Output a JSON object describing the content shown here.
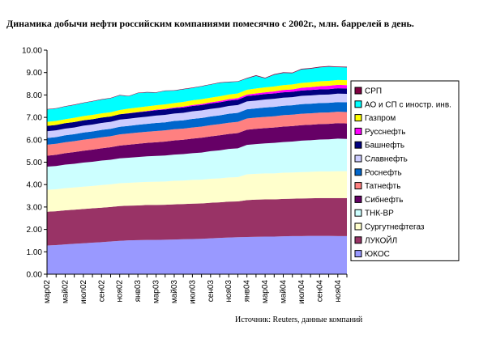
{
  "title": "Динамика добычи нефти российским компаниями помесячно с 2002г., млн. баррелей в день.",
  "source": "Источник: Reuters, данные компаний",
  "chart_data": {
    "type": "area",
    "stacked": true,
    "ylim": [
      0,
      10
    ],
    "yticks": [
      "0.00",
      "1.00",
      "2.00",
      "3.00",
      "4.00",
      "5.00",
      "6.00",
      "7.00",
      "8.00",
      "9.00",
      "10.00"
    ],
    "x_tick_labels": [
      "мар02",
      "май02",
      "июл02",
      "сен02",
      "ноя02",
      "янв03",
      "мар03",
      "май03",
      "июл03",
      "сен03",
      "ноя03",
      "янв04",
      "мар04",
      "май04",
      "июл04",
      "сен04",
      "ноя04"
    ],
    "x": [
      "мар02",
      "апр02",
      "май02",
      "июн02",
      "июл02",
      "авг02",
      "сен02",
      "окт02",
      "ноя02",
      "дек02",
      "янв03",
      "фев03",
      "мар03",
      "апр03",
      "май03",
      "июн03",
      "июл03",
      "авг03",
      "сен03",
      "окт03",
      "ноя03",
      "дек03",
      "янв04",
      "фев04",
      "мар04",
      "апр04",
      "май04",
      "июн04",
      "июл04",
      "авг04",
      "сен04",
      "окт04",
      "ноя04",
      "дек04"
    ],
    "grid": false,
    "legend_position": "right",
    "series": [
      {
        "name": "ЮКОС",
        "color": "#9999ff",
        "values": [
          1.28,
          1.3,
          1.33,
          1.36,
          1.38,
          1.41,
          1.43,
          1.46,
          1.49,
          1.51,
          1.52,
          1.53,
          1.53,
          1.54,
          1.55,
          1.56,
          1.57,
          1.58,
          1.6,
          1.62,
          1.64,
          1.65,
          1.66,
          1.67,
          1.68,
          1.68,
          1.69,
          1.7,
          1.7,
          1.71,
          1.71,
          1.71,
          1.7,
          1.7
        ]
      },
      {
        "name": "ЛУКОЙЛ",
        "color": "#993366",
        "values": [
          1.51,
          1.51,
          1.52,
          1.52,
          1.53,
          1.53,
          1.54,
          1.54,
          1.55,
          1.55,
          1.55,
          1.56,
          1.56,
          1.56,
          1.57,
          1.57,
          1.58,
          1.58,
          1.59,
          1.59,
          1.6,
          1.6,
          1.65,
          1.66,
          1.66,
          1.66,
          1.67,
          1.67,
          1.68,
          1.68,
          1.69,
          1.69,
          1.7,
          1.7
        ]
      },
      {
        "name": "Сургутнефтегаз",
        "color": "#ffffcc",
        "values": [
          0.98,
          0.98,
          0.99,
          0.99,
          1.0,
          1.0,
          1.01,
          1.01,
          1.02,
          1.02,
          1.03,
          1.03,
          1.04,
          1.04,
          1.05,
          1.05,
          1.06,
          1.06,
          1.07,
          1.07,
          1.08,
          1.08,
          1.15,
          1.15,
          1.16,
          1.16,
          1.17,
          1.17,
          1.18,
          1.18,
          1.19,
          1.19,
          1.2,
          1.2
        ]
      },
      {
        "name": "ТНК-ВР",
        "color": "#ccffff",
        "values": [
          1.03,
          1.04,
          1.05,
          1.06,
          1.07,
          1.08,
          1.09,
          1.1,
          1.11,
          1.12,
          1.13,
          1.14,
          1.15,
          1.16,
          1.17,
          1.18,
          1.19,
          1.21,
          1.23,
          1.25,
          1.27,
          1.29,
          1.31,
          1.33,
          1.34,
          1.36,
          1.37,
          1.38,
          1.4,
          1.41,
          1.42,
          1.43,
          1.45,
          1.44
        ]
      },
      {
        "name": "Сибнефть",
        "color": "#660066",
        "values": [
          0.49,
          0.5,
          0.51,
          0.52,
          0.53,
          0.54,
          0.55,
          0.56,
          0.57,
          0.58,
          0.59,
          0.6,
          0.61,
          0.62,
          0.63,
          0.64,
          0.65,
          0.66,
          0.66,
          0.67,
          0.67,
          0.68,
          0.68,
          0.68,
          0.68,
          0.69,
          0.69,
          0.69,
          0.69,
          0.69,
          0.69,
          0.69,
          0.69,
          0.69
        ]
      },
      {
        "name": "Татнефть",
        "color": "#ff8080",
        "values": [
          0.49,
          0.49,
          0.49,
          0.49,
          0.49,
          0.49,
          0.49,
          0.49,
          0.5,
          0.5,
          0.5,
          0.5,
          0.5,
          0.5,
          0.5,
          0.5,
          0.5,
          0.5,
          0.5,
          0.5,
          0.5,
          0.5,
          0.5,
          0.5,
          0.5,
          0.5,
          0.51,
          0.51,
          0.51,
          0.51,
          0.51,
          0.51,
          0.51,
          0.51
        ]
      },
      {
        "name": "Роснефть",
        "color": "#0066cc",
        "values": [
          0.3,
          0.3,
          0.31,
          0.31,
          0.32,
          0.32,
          0.33,
          0.33,
          0.34,
          0.34,
          0.35,
          0.35,
          0.36,
          0.36,
          0.37,
          0.37,
          0.38,
          0.38,
          0.39,
          0.39,
          0.4,
          0.4,
          0.41,
          0.41,
          0.42,
          0.42,
          0.42,
          0.42,
          0.43,
          0.43,
          0.43,
          0.43,
          0.43,
          0.43
        ]
      },
      {
        "name": "Славнефть",
        "color": "#ccccff",
        "values": [
          0.3,
          0.3,
          0.3,
          0.3,
          0.31,
          0.31,
          0.31,
          0.31,
          0.32,
          0.32,
          0.32,
          0.32,
          0.33,
          0.33,
          0.33,
          0.33,
          0.34,
          0.34,
          0.34,
          0.34,
          0.35,
          0.35,
          0.35,
          0.35,
          0.36,
          0.36,
          0.36,
          0.36,
          0.37,
          0.37,
          0.37,
          0.37,
          0.38,
          0.38
        ]
      },
      {
        "name": "Башнефть",
        "color": "#000080",
        "values": [
          0.24,
          0.24,
          0.24,
          0.24,
          0.24,
          0.24,
          0.24,
          0.24,
          0.24,
          0.24,
          0.24,
          0.24,
          0.24,
          0.24,
          0.24,
          0.24,
          0.24,
          0.24,
          0.24,
          0.24,
          0.24,
          0.24,
          0.24,
          0.24,
          0.24,
          0.24,
          0.24,
          0.24,
          0.24,
          0.24,
          0.24,
          0.24,
          0.24,
          0.24
        ]
      },
      {
        "name": "Русснефть",
        "color": "#ff00ff",
        "values": [
          0.0,
          0.0,
          0.0,
          0.0,
          0.0,
          0.0,
          0.0,
          0.0,
          0.0,
          0.01,
          0.01,
          0.02,
          0.02,
          0.03,
          0.03,
          0.04,
          0.04,
          0.05,
          0.05,
          0.06,
          0.06,
          0.07,
          0.07,
          0.08,
          0.08,
          0.09,
          0.1,
          0.11,
          0.12,
          0.13,
          0.14,
          0.15,
          0.15,
          0.15
        ]
      },
      {
        "name": "Газпром",
        "color": "#ffff00",
        "values": [
          0.18,
          0.18,
          0.18,
          0.19,
          0.19,
          0.19,
          0.19,
          0.19,
          0.19,
          0.2,
          0.2,
          0.2,
          0.2,
          0.2,
          0.2,
          0.21,
          0.21,
          0.21,
          0.21,
          0.21,
          0.21,
          0.21,
          0.21,
          0.22,
          0.22,
          0.22,
          0.22,
          0.22,
          0.22,
          0.22,
          0.22,
          0.22,
          0.22,
          0.22
        ]
      },
      {
        "name": "АО и СП с иностр. инв.",
        "color": "#00ffff",
        "values": [
          0.55,
          0.55,
          0.56,
          0.57,
          0.58,
          0.6,
          0.61,
          0.62,
          0.65,
          0.55,
          0.64,
          0.62,
          0.56,
          0.6,
          0.55,
          0.56,
          0.55,
          0.57,
          0.58,
          0.6,
          0.55,
          0.52,
          0.5,
          0.56,
          0.4,
          0.52,
          0.54,
          0.5,
          0.6,
          0.6,
          0.62,
          0.63,
          0.57,
          0.57
        ]
      },
      {
        "name": "СРП",
        "color": "#800040",
        "values": [
          0.02,
          0.02,
          0.02,
          0.02,
          0.02,
          0.02,
          0.02,
          0.02,
          0.02,
          0.02,
          0.02,
          0.02,
          0.02,
          0.02,
          0.02,
          0.02,
          0.02,
          0.02,
          0.02,
          0.02,
          0.02,
          0.02,
          0.03,
          0.03,
          0.03,
          0.03,
          0.03,
          0.03,
          0.03,
          0.03,
          0.03,
          0.03,
          0.03,
          0.03
        ]
      }
    ]
  }
}
